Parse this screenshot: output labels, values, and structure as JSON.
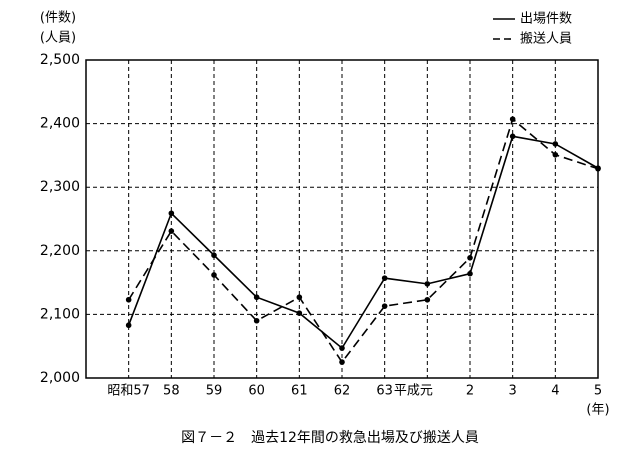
{
  "chart_data": {
    "type": "line",
    "title": "図７－２　過去12年間の救急出場及び搬送人員",
    "y_label": [
      "(件数)",
      "(人員)"
    ],
    "x_unit": "(年)",
    "categories": [
      "昭和57",
      "58",
      "59",
      "60",
      "61",
      "62",
      "63",
      "平成元",
      "2",
      "3",
      "4",
      "5"
    ],
    "series": [
      {
        "name": "出場件数",
        "color": "#000000",
        "dash": false,
        "values": [
          2083,
          2259,
          2193,
          2127,
          2102,
          2047,
          2157,
          2148,
          2164,
          2380,
          2368,
          2330
        ]
      },
      {
        "name": "搬送人員",
        "color": "#000000",
        "dash": true,
        "values": [
          2123,
          2231,
          2162,
          2090,
          2127,
          2025,
          2113,
          2123,
          2189,
          2407,
          2351,
          2329
        ]
      }
    ],
    "ylim": [
      2000,
      2500
    ],
    "yticks": [
      {
        "value": 2000,
        "label": "2,000"
      },
      {
        "value": 2100,
        "label": "2,100"
      },
      {
        "value": 2200,
        "label": "2,200"
      },
      {
        "value": 2300,
        "label": "2,300"
      },
      {
        "value": 2400,
        "label": "2,400"
      },
      {
        "value": 2500,
        "label": "2,500"
      }
    ],
    "grid": true,
    "legend": "top-right"
  }
}
